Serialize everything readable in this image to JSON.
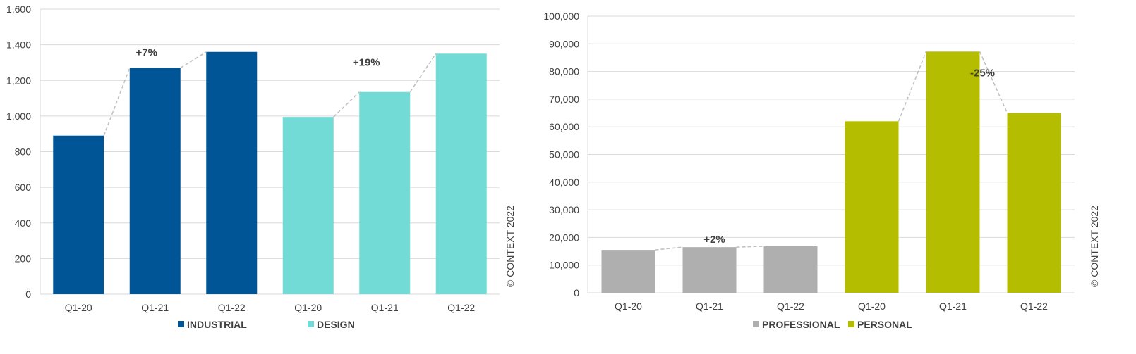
{
  "chart_data": [
    {
      "type": "bar",
      "categories": [
        "Q1-20",
        "Q1-21",
        "Q1-22",
        "Q1-20",
        "Q1-21",
        "Q1-22"
      ],
      "values": [
        890,
        1270,
        1360,
        995,
        1135,
        1350
      ],
      "series": [
        {
          "name": "INDUSTRIAL",
          "color": "#005596",
          "indices": [
            0,
            1,
            2
          ]
        },
        {
          "name": "DESIGN",
          "color": "#72DBD5",
          "indices": [
            3,
            4,
            5
          ]
        }
      ],
      "ylim": [
        0,
        1600
      ],
      "yticks": [
        "0",
        "200",
        "400",
        "600",
        "800",
        "1,000",
        "1,200",
        "1,400",
        "1,600"
      ],
      "ytick_values": [
        0,
        200,
        400,
        600,
        800,
        1000,
        1200,
        1400,
        1600
      ],
      "annotations": [
        {
          "text": "+7%",
          "near_bar": 1
        },
        {
          "text": "+19%",
          "near_bar": 4
        }
      ],
      "legend_position": "bottom",
      "grid": true,
      "copyright": "© CONTEXT 2022"
    },
    {
      "type": "bar",
      "categories": [
        "Q1-20",
        "Q1-21",
        "Q1-22",
        "Q1-20",
        "Q1-21",
        "Q1-22"
      ],
      "values": [
        15500,
        16500,
        16800,
        62000,
        87200,
        65000
      ],
      "series": [
        {
          "name": "PROFESSIONAL",
          "color": "#AFAFAF",
          "indices": [
            0,
            1,
            2
          ]
        },
        {
          "name": "PERSONAL",
          "color": "#B5BD00",
          "indices": [
            3,
            4,
            5
          ]
        }
      ],
      "ylim": [
        0,
        100000
      ],
      "yticks": [
        "0",
        "10,000",
        "20,000",
        "30,000",
        "40,000",
        "50,000",
        "60,000",
        "70,000",
        "80,000",
        "90,000",
        "100,000"
      ],
      "ytick_values": [
        0,
        10000,
        20000,
        30000,
        40000,
        50000,
        60000,
        70000,
        80000,
        90000,
        100000
      ],
      "annotations": [
        {
          "text": "+2%",
          "near_bar": 1
        },
        {
          "text": "-25%",
          "near_bar": 4
        }
      ],
      "legend_position": "bottom",
      "grid": true,
      "copyright": "© CONTEXT 2022"
    }
  ],
  "colors": {
    "grid": "#D9D9D9",
    "connector": "#BFBFBF",
    "text": "#404040"
  }
}
